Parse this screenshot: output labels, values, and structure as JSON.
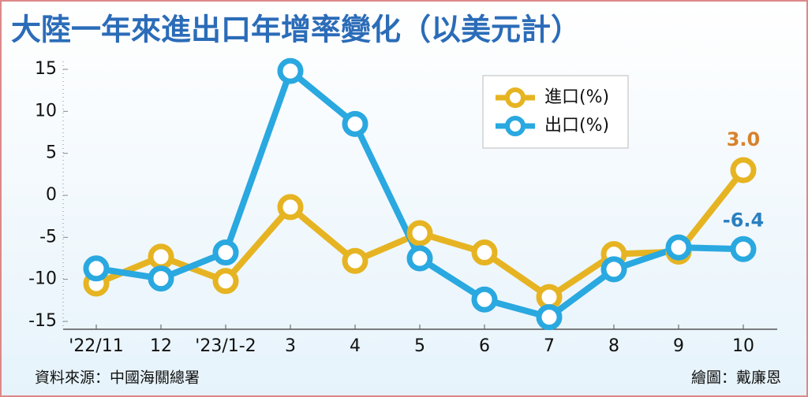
{
  "chart_data": {
    "type": "line",
    "title": "大陸一年來進出口年增率變化（以美元計）",
    "categories": [
      "'22/11",
      "12",
      "'23/1-2",
      "3",
      "4",
      "5",
      "6",
      "7",
      "8",
      "9",
      "10"
    ],
    "series": [
      {
        "name": "進口(%)",
        "color": "#e6b422",
        "label_color": "#d9822b",
        "values": [
          -10.5,
          -7.3,
          -10.2,
          -1.4,
          -7.8,
          -4.5,
          -6.8,
          -12.1,
          -7.0,
          -6.7,
          3.0
        ],
        "value_labels": [
          null,
          null,
          null,
          null,
          null,
          null,
          null,
          null,
          null,
          null,
          "3.0"
        ]
      },
      {
        "name": "出口(%)",
        "color": "#2aa8e0",
        "label_color": "#2a7fc0",
        "values": [
          -8.7,
          -9.9,
          -6.8,
          14.8,
          8.5,
          -7.5,
          -12.4,
          -14.5,
          -8.8,
          -6.2,
          -6.4
        ],
        "value_labels": [
          null,
          null,
          null,
          null,
          null,
          null,
          null,
          null,
          null,
          null,
          "-6.4"
        ]
      }
    ],
    "ylim": [
      -15,
      15
    ],
    "yticks": [
      -15,
      -10,
      -5,
      0,
      5,
      10,
      15
    ],
    "grid": false,
    "legend": "top-right",
    "source": "資料來源：中國海關總署",
    "credit": "繪圖：戴廉恩"
  }
}
